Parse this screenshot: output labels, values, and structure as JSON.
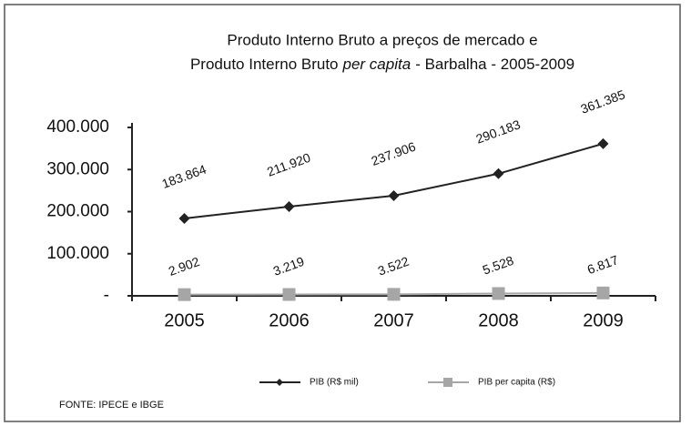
{
  "chart_data": {
    "type": "line",
    "title": [
      "Produto Interno Bruto a preços de mercado e",
      [
        "Produto Interno Bruto",
        "per capita",
        "- Barbalha - 2005-2009"
      ]
    ],
    "categories": [
      "2005",
      "2006",
      "2007",
      "2008",
      "2009"
    ],
    "series": [
      {
        "name": "PIB (R$ mil)",
        "color": "#222222",
        "marker": "diamond",
        "values": [
          183864,
          211920,
          237906,
          290183,
          361385
        ],
        "value_labels": [
          "183.864",
          "211.920",
          "237.906",
          "290.183",
          "361.385"
        ]
      },
      {
        "name": "PIB per capita (R$)",
        "color": "#a6a6a6",
        "marker": "square",
        "values": [
          2902,
          3219,
          3522,
          5528,
          6817
        ],
        "value_labels": [
          "2.902",
          "3.219",
          "3.522",
          "5.528",
          "6.817"
        ]
      }
    ],
    "ylim": [
      0,
      400000
    ],
    "yticks": [
      {
        "value": 0,
        "label": "-"
      },
      {
        "value": 100000,
        "label": "100.000"
      },
      {
        "value": 200000,
        "label": "200.000"
      },
      {
        "value": 300000,
        "label": "300.000"
      },
      {
        "value": 400000,
        "label": "400.000"
      }
    ],
    "legend": "bottom",
    "source": "FONTE: IPECE e IBGE"
  }
}
